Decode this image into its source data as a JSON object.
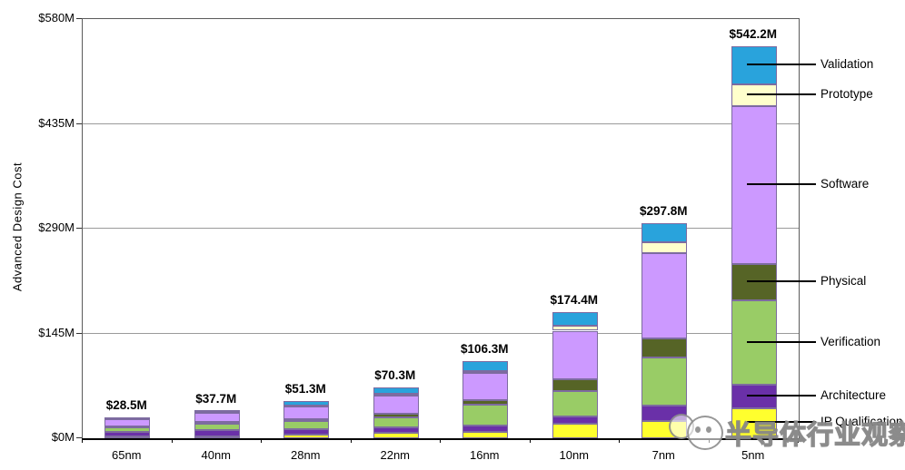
{
  "page": {
    "background": "#ffffff"
  },
  "chart_data": {
    "type": "bar",
    "stacked": true,
    "title": "",
    "xlabel": "",
    "ylabel": "Advanced Design Cost",
    "ylim": [
      0,
      580
    ],
    "yticks": [
      {
        "label": "$0M",
        "value": 0
      },
      {
        "label": "$145M",
        "value": 145
      },
      {
        "label": "$290M",
        "value": 290
      },
      {
        "label": "$435M",
        "value": 435
      },
      {
        "label": "$580M",
        "value": 580
      }
    ],
    "grid": "horizontal",
    "legend_position": "right-callouts",
    "categories": [
      "65nm",
      "40nm",
      "28nm",
      "22nm",
      "16nm",
      "10nm",
      "7nm",
      "5nm"
    ],
    "totals": [
      {
        "label": "$28.5M",
        "value": 28.5
      },
      {
        "label": "$37.7M",
        "value": 37.7
      },
      {
        "label": "$51.3M",
        "value": 51.3
      },
      {
        "label": "$70.3M",
        "value": 70.3
      },
      {
        "label": "$106.3M",
        "value": 106.3
      },
      {
        "label": "$174.4M",
        "value": 174.4
      },
      {
        "label": "$297.8M",
        "value": 297.8
      },
      {
        "label": "$542.2M",
        "value": 542.2
      }
    ],
    "series_bottom_to_top": [
      {
        "name": "IP Qualification",
        "color": "#FFFF2E",
        "values": [
          2.3,
          3.0,
          5.0,
          7.6,
          8.6,
          19.9,
          23.5,
          42.0
        ]
      },
      {
        "name": "Architecture",
        "color": "#6A30A8",
        "values": [
          6.5,
          8.5,
          8.0,
          7.6,
          8.6,
          9.7,
          22.1,
          31.5
        ]
      },
      {
        "name": "Verification",
        "color": "#99CC66",
        "values": [
          6.2,
          8.5,
          11.0,
          13.6,
          29.2,
          35.9,
          66.5,
          116.8
        ]
      },
      {
        "name": "Physical",
        "color": "#566426",
        "values": [
          1.7,
          2.2,
          3.0,
          5.1,
          6.8,
          16.1,
          25.5,
          50.5
        ]
      },
      {
        "name": "Software",
        "color": "#CC99FF",
        "values": [
          9.8,
          13.0,
          17.3,
          24.6,
          37.7,
          67.2,
          118.0,
          219.3
        ]
      },
      {
        "name": "Prototype",
        "color": "#FFFFCC",
        "values": [
          0.5,
          0.7,
          1.5,
          2.5,
          2.6,
          6.3,
          15.4,
          29.5
        ]
      },
      {
        "name": "Validation",
        "color": "#29A3DC",
        "values": [
          1.5,
          1.8,
          5.5,
          9.3,
          12.8,
          19.3,
          26.8,
          52.6
        ]
      }
    ],
    "legend_top_to_bottom": [
      "Validation",
      "Prototype",
      "Software",
      "Physical",
      "Verification",
      "Architecture",
      "IP Qualification"
    ]
  },
  "colors": {
    "bar_border": "#7d6ba0",
    "gridline": "#9a9a9a",
    "plot_border": "#5a5a5a",
    "axis": "#000000",
    "text": "#000000"
  },
  "watermark": {
    "text": "半导体行业观察"
  }
}
